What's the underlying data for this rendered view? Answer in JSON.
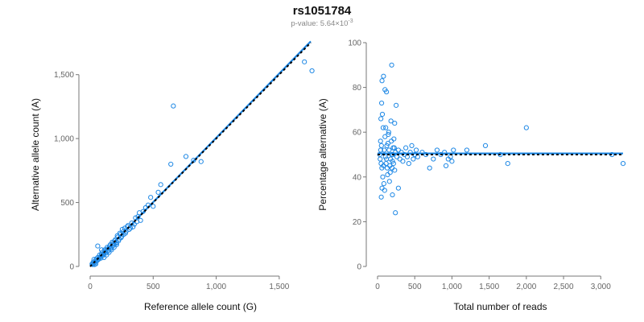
{
  "chart_data": {
    "title": "rs1051784",
    "subtitle_prefix": "p-value: 5.64×10",
    "subtitle_exponent": "-3",
    "colors": {
      "points": "#1e88e5",
      "fit": "#1e88e5",
      "reference": "#000000"
    },
    "panels": [
      {
        "id": "left",
        "type": "scatter",
        "xlabel": "Reference allele count (G)",
        "ylabel": "Alternative allele count (A)",
        "xlim": [
          0,
          1750
        ],
        "ylim": [
          0,
          1750
        ],
        "xticks": [
          0,
          500,
          1000,
          1500
        ],
        "xtick_labels": [
          "0",
          "500",
          "1,000",
          "1,500"
        ],
        "yticks": [
          0,
          500,
          1000,
          1500
        ],
        "ytick_labels": [
          "0",
          "500",
          "1,000",
          "1,500"
        ],
        "fit_line": [
          [
            0,
            0
          ],
          [
            1750,
            1760
          ]
        ],
        "reference_line": [
          [
            0,
            0
          ],
          [
            1750,
            1750
          ]
        ],
        "points": [
          [
            20,
            15
          ],
          [
            30,
            25
          ],
          [
            40,
            35
          ],
          [
            45,
            50
          ],
          [
            55,
            45
          ],
          [
            60,
            70
          ],
          [
            70,
            60
          ],
          [
            80,
            75
          ],
          [
            90,
            95
          ],
          [
            100,
            85
          ],
          [
            110,
            100
          ],
          [
            120,
            115
          ],
          [
            130,
            135
          ],
          [
            140,
            120
          ],
          [
            150,
            145
          ],
          [
            160,
            170
          ],
          [
            170,
            150
          ],
          [
            180,
            180
          ],
          [
            190,
            175
          ],
          [
            200,
            210
          ],
          [
            210,
            190
          ],
          [
            220,
            230
          ],
          [
            230,
            215
          ],
          [
            240,
            250
          ],
          [
            250,
            235
          ],
          [
            260,
            270
          ],
          [
            280,
            260
          ],
          [
            300,
            320
          ],
          [
            320,
            300
          ],
          [
            350,
            330
          ],
          [
            380,
            390
          ],
          [
            400,
            360
          ],
          [
            420,
            430
          ],
          [
            440,
            460
          ],
          [
            460,
            480
          ],
          [
            480,
            540
          ],
          [
            500,
            470
          ],
          [
            540,
            580
          ],
          [
            560,
            640
          ],
          [
            640,
            800
          ],
          [
            660,
            1255
          ],
          [
            760,
            860
          ],
          [
            820,
            830
          ],
          [
            880,
            820
          ],
          [
            1700,
            1600
          ],
          [
            1760,
            1530
          ],
          [
            15,
            20
          ],
          [
            25,
            35
          ],
          [
            35,
            15
          ],
          [
            50,
            60
          ],
          [
            65,
            55
          ],
          [
            75,
            90
          ],
          [
            85,
            65
          ],
          [
            95,
            110
          ],
          [
            105,
            95
          ],
          [
            115,
            130
          ],
          [
            125,
            105
          ],
          [
            135,
            150
          ],
          [
            145,
            130
          ],
          [
            155,
            160
          ],
          [
            165,
            140
          ],
          [
            175,
            190
          ],
          [
            185,
            165
          ],
          [
            195,
            200
          ],
          [
            205,
            180
          ],
          [
            215,
            240
          ],
          [
            225,
            200
          ],
          [
            235,
            260
          ],
          [
            245,
            225
          ],
          [
            255,
            290
          ],
          [
            265,
            250
          ],
          [
            275,
            300
          ],
          [
            285,
            275
          ],
          [
            295,
            310
          ],
          [
            310,
            290
          ],
          [
            330,
            340
          ],
          [
            340,
            310
          ],
          [
            360,
            380
          ],
          [
            370,
            350
          ],
          [
            390,
            420
          ],
          [
            60,
            160
          ],
          [
            90,
            130
          ],
          [
            45,
            20
          ],
          [
            30,
            55
          ],
          [
            110,
            70
          ],
          [
            130,
            90
          ],
          [
            150,
            110
          ],
          [
            170,
            130
          ],
          [
            190,
            150
          ],
          [
            210,
            170
          ]
        ]
      },
      {
        "id": "right",
        "type": "scatter",
        "xlabel": "Total number of reads",
        "ylabel": "Percentage alternative (A)",
        "xlim": [
          0,
          3300
        ],
        "ylim": [
          0,
          100
        ],
        "xticks": [
          0,
          500,
          1000,
          1500,
          2000,
          2500,
          3000
        ],
        "xtick_labels": [
          "0",
          "500",
          "1,000",
          "1,500",
          "2,000",
          "2,500",
          "3,000"
        ],
        "yticks": [
          0,
          20,
          40,
          60,
          80,
          100
        ],
        "ytick_labels": [
          "0",
          "20",
          "40",
          "60",
          "80",
          "100"
        ],
        "fit_line": [
          [
            0,
            50.5
          ],
          [
            3300,
            50.5
          ]
        ],
        "reference_line": [
          [
            0,
            50
          ],
          [
            3300,
            50
          ]
        ],
        "points": [
          [
            50,
            31
          ],
          [
            60,
            35
          ],
          [
            70,
            40
          ],
          [
            80,
            45
          ],
          [
            90,
            52
          ],
          [
            100,
            58
          ],
          [
            110,
            62
          ],
          [
            120,
            48
          ],
          [
            130,
            44
          ],
          [
            140,
            55
          ],
          [
            150,
            60
          ],
          [
            160,
            38
          ],
          [
            170,
            42
          ],
          [
            180,
            65
          ],
          [
            190,
            50
          ],
          [
            200,
            47
          ],
          [
            210,
            53
          ],
          [
            220,
            57
          ],
          [
            230,
            43
          ],
          [
            240,
            51
          ],
          [
            60,
            83
          ],
          [
            80,
            85
          ],
          [
            100,
            79
          ],
          [
            120,
            78
          ],
          [
            190,
            90
          ],
          [
            250,
            72
          ],
          [
            230,
            64
          ],
          [
            240,
            24
          ],
          [
            200,
            32
          ],
          [
            280,
            35
          ],
          [
            40,
            56
          ],
          [
            45,
            66
          ],
          [
            55,
            73
          ],
          [
            65,
            68
          ],
          [
            75,
            62
          ],
          [
            85,
            37
          ],
          [
            95,
            34
          ],
          [
            105,
            49
          ],
          [
            115,
            46
          ],
          [
            125,
            54
          ],
          [
            135,
            41
          ],
          [
            145,
            59
          ],
          [
            155,
            52
          ],
          [
            165,
            45
          ],
          [
            175,
            48
          ],
          [
            185,
            56
          ],
          [
            195,
            44
          ],
          [
            205,
            50
          ],
          [
            215,
            46
          ],
          [
            225,
            53
          ],
          [
            260,
            49
          ],
          [
            280,
            52
          ],
          [
            300,
            48
          ],
          [
            320,
            51
          ],
          [
            340,
            47
          ],
          [
            360,
            50
          ],
          [
            380,
            53
          ],
          [
            400,
            49
          ],
          [
            420,
            46
          ],
          [
            440,
            51
          ],
          [
            460,
            54
          ],
          [
            480,
            48
          ],
          [
            500,
            50
          ],
          [
            520,
            52
          ],
          [
            540,
            49
          ],
          [
            600,
            51
          ],
          [
            650,
            50
          ],
          [
            700,
            44
          ],
          [
            750,
            48
          ],
          [
            800,
            52
          ],
          [
            850,
            50
          ],
          [
            900,
            51
          ],
          [
            920,
            45
          ],
          [
            950,
            48
          ],
          [
            980,
            49
          ],
          [
            1000,
            47
          ],
          [
            1020,
            52
          ],
          [
            1200,
            52
          ],
          [
            1450,
            54
          ],
          [
            1650,
            50
          ],
          [
            1750,
            46
          ],
          [
            2000,
            62
          ],
          [
            3150,
            50
          ],
          [
            3300,
            46
          ],
          [
            30,
            50
          ],
          [
            35,
            48
          ],
          [
            42,
            52
          ],
          [
            48,
            46
          ],
          [
            52,
            54
          ],
          [
            58,
            44
          ]
        ]
      }
    ]
  }
}
